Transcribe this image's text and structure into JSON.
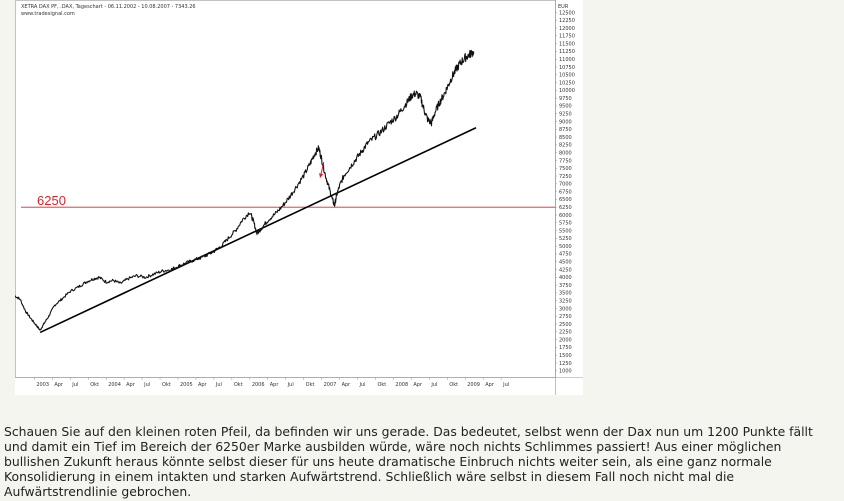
{
  "chart_data": {
    "type": "line",
    "title": "XETRA DAX PF, .DAX, Tageschart - 06.11.2002 - 10.08.2007 - 7343.26",
    "source": "www.tradesignal.com",
    "ylabel": "EUR",
    "ylim": [
      800,
      12900
    ],
    "yticks": [
      1000,
      1250,
      1500,
      1750,
      2000,
      2250,
      2500,
      2750,
      3000,
      3250,
      3500,
      3750,
      4000,
      4250,
      4500,
      4750,
      5000,
      5250,
      5500,
      5750,
      6000,
      6250,
      6500,
      6750,
      7000,
      7250,
      7500,
      7750,
      8000,
      8250,
      8500,
      8750,
      9000,
      9250,
      9500,
      9750,
      10000,
      10250,
      10500,
      10750,
      11000,
      11250,
      11500,
      11750,
      12000,
      12250,
      12500
    ],
    "xticks": [
      {
        "label": "2003",
        "t": 0.0
      },
      {
        "label": "Apr",
        "t": 0.25
      },
      {
        "label": "Jul",
        "t": 0.5
      },
      {
        "label": "Okt",
        "t": 0.75
      },
      {
        "label": "2004",
        "t": 1.0
      },
      {
        "label": "Apr",
        "t": 1.25
      },
      {
        "label": "Jul",
        "t": 1.5
      },
      {
        "label": "Okt",
        "t": 1.75
      },
      {
        "label": "2005",
        "t": 2.0
      },
      {
        "label": "Apr",
        "t": 2.25
      },
      {
        "label": "Jul",
        "t": 2.5
      },
      {
        "label": "Okt",
        "t": 2.75
      },
      {
        "label": "2006",
        "t": 3.0
      },
      {
        "label": "Apr",
        "t": 3.25
      },
      {
        "label": "Jul",
        "t": 3.5
      },
      {
        "label": "Okt",
        "t": 3.75
      },
      {
        "label": "2007",
        "t": 4.0
      },
      {
        "label": "Apr",
        "t": 4.25
      },
      {
        "label": "Jul",
        "t": 4.5
      },
      {
        "label": "Okt",
        "t": 4.75
      },
      {
        "label": "2008",
        "t": 5.0
      },
      {
        "label": "Apr",
        "t": 5.25
      },
      {
        "label": "Jul",
        "t": 5.5
      },
      {
        "label": "Okt",
        "t": 5.75
      },
      {
        "label": "2009",
        "t": 6.0
      },
      {
        "label": "Apr",
        "t": 6.25
      },
      {
        "label": "Jul",
        "t": 6.5
      }
    ],
    "xlim": [
      -0.27,
      7.25
    ],
    "series": [
      {
        "points": [
          [
            -0.27,
            3400
          ],
          [
            -0.2,
            3300
          ],
          [
            -0.12,
            2900
          ],
          [
            -0.04,
            2650
          ],
          [
            0.03,
            2450
          ],
          [
            0.08,
            2300
          ],
          [
            0.13,
            2500
          ],
          [
            0.2,
            2750
          ],
          [
            0.28,
            3100
          ],
          [
            0.38,
            3300
          ],
          [
            0.5,
            3550
          ],
          [
            0.62,
            3700
          ],
          [
            0.72,
            3850
          ],
          [
            0.82,
            3950
          ],
          [
            0.9,
            4000
          ],
          [
            1.0,
            3850
          ],
          [
            1.1,
            3900
          ],
          [
            1.2,
            3800
          ],
          [
            1.3,
            3950
          ],
          [
            1.42,
            4050
          ],
          [
            1.55,
            4000
          ],
          [
            1.66,
            4100
          ],
          [
            1.78,
            4200
          ],
          [
            1.9,
            4250
          ],
          [
            2.0,
            4350
          ],
          [
            2.1,
            4450
          ],
          [
            2.22,
            4550
          ],
          [
            2.35,
            4650
          ],
          [
            2.48,
            4800
          ],
          [
            2.6,
            5000
          ],
          [
            2.7,
            5250
          ],
          [
            2.8,
            5500
          ],
          [
            2.9,
            5850
          ],
          [
            3.0,
            6100
          ],
          [
            3.05,
            5800
          ],
          [
            3.1,
            5400
          ],
          [
            3.17,
            5600
          ],
          [
            3.26,
            5850
          ],
          [
            3.36,
            6050
          ],
          [
            3.46,
            6300
          ],
          [
            3.56,
            6600
          ],
          [
            3.66,
            6950
          ],
          [
            3.76,
            7300
          ],
          [
            3.84,
            7650
          ],
          [
            3.9,
            7950
          ],
          [
            3.96,
            8150
          ],
          [
            4.0,
            7800
          ],
          [
            4.05,
            7300
          ],
          [
            4.1,
            6900
          ],
          [
            4.15,
            6500
          ],
          [
            4.18,
            6300
          ],
          [
            4.21,
            6650
          ],
          [
            4.26,
            7000
          ],
          [
            4.32,
            7300
          ],
          [
            4.4,
            7550
          ],
          [
            4.48,
            7800
          ],
          [
            4.56,
            8050
          ],
          [
            4.64,
            8300
          ],
          [
            4.74,
            8500
          ],
          [
            4.84,
            8700
          ],
          [
            4.94,
            8950
          ],
          [
            5.04,
            9150
          ],
          [
            5.12,
            9400
          ],
          [
            5.2,
            9650
          ],
          [
            5.26,
            9850
          ],
          [
            5.32,
            9900
          ],
          [
            5.38,
            9750
          ],
          [
            5.43,
            9350
          ],
          [
            5.48,
            9050
          ],
          [
            5.53,
            8950
          ],
          [
            5.58,
            9300
          ],
          [
            5.64,
            9600
          ],
          [
            5.7,
            9850
          ],
          [
            5.76,
            10150
          ],
          [
            5.82,
            10450
          ],
          [
            5.88,
            10700
          ],
          [
            5.94,
            10900
          ],
          [
            6.0,
            11050
          ],
          [
            6.06,
            11150
          ],
          [
            6.12,
            11250
          ]
        ]
      }
    ],
    "trendline": {
      "from": [
        0.08,
        2230
      ],
      "to": [
        6.15,
        8800
      ]
    },
    "level": {
      "value": 6250,
      "label": "6250"
    },
    "arrow": {
      "from": [
        4.03,
        7700
      ],
      "to": [
        3.98,
        7200
      ]
    },
    "caption": "Schauen Sie auf den kleinen roten Pfeil, da befinden wir uns gerade. Das bedeutet, selbst wenn der Dax nun um 1200 Punkte fällt und damit ein Tief im Bereich der 6250er Marke ausbilden würde, wäre noch nichts Schlimmes passiert! Aus einer möglichen bullishen Zukunft heraus könnte selbst dieser für uns heute dramatische Einbruch nichts weiter sein, als eine ganz normale Konsolidierung in einem intakten und starken Aufwärtstrend. Schließlich wäre selbst in diesem Fall noch nicht mal die Aufwärtstrendlinie gebrochen."
  }
}
